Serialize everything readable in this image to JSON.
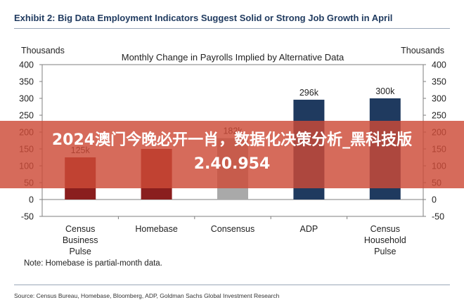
{
  "exhibit_title": "Exhibit 2: Big Data Employment Indicators Suggest Solid or Strong Job Growth in April",
  "note": "Note: Homebase is partial-month data.",
  "source": "Source: Census Bureau, Homebase, Bloomberg, ADP, Goldman Sachs Global Investment Research",
  "overlay_banner": "2024澳门今晚必开一肖，数据化决策分析_黑科技版2.40.954",
  "colors": {
    "bar": "#8a1e1e",
    "consensus": "#a9a9a9",
    "banner": "#cd4b37",
    "frame": "#7f7f7f"
  },
  "chart_data": {
    "type": "bar",
    "title": "Monthly Change in Payrolls Implied by Alternative Data",
    "ylabel_left": "Thousands",
    "ylabel_right": "Thousands",
    "ylim": [
      -50,
      400
    ],
    "yticks": [
      -50,
      0,
      50,
      100,
      150,
      200,
      250,
      300,
      350,
      400
    ],
    "categories": [
      "Census\nBusiness\nPulse",
      "Homebase",
      "Consensus",
      "ADP",
      "Census\nHousehold\nPulse"
    ],
    "values": [
      125,
      150,
      182,
      296,
      300
    ],
    "data_labels": [
      "125k",
      "",
      "182k",
      "296k",
      "300k"
    ],
    "bar_colors": [
      "#8a1e1e",
      "#8a1e1e",
      "#a9a9a9",
      "#1f3a5f",
      "#1f3a5f"
    ],
    "grid": false,
    "legend": "none"
  }
}
